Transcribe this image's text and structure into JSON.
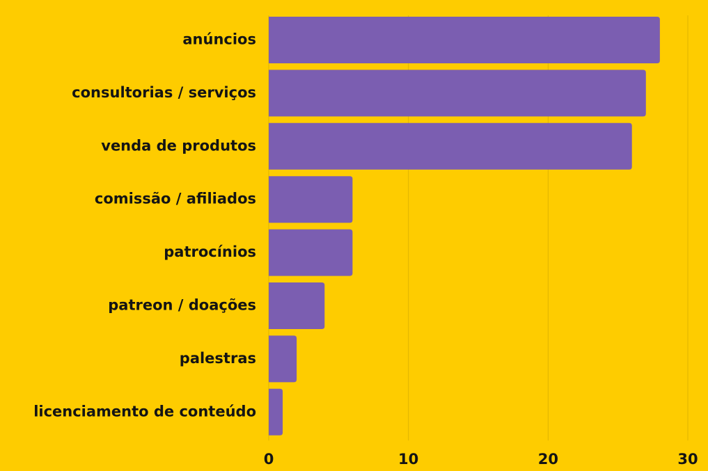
{
  "colors": {
    "background": "#FECC00",
    "bar": "#7B5EB1",
    "grid": "#E0B400",
    "text": "#141414"
  },
  "chart_data": {
    "type": "bar",
    "orientation": "horizontal",
    "categories": [
      "anúncios",
      "consultorias / serviços",
      "venda de produtos",
      "comissão / afiliados",
      "patrocínios",
      "patreon / doações",
      "palestras",
      "licenciamento de conteúdo"
    ],
    "values": [
      28,
      27,
      26,
      6,
      6,
      4,
      2,
      1
    ],
    "xlim": [
      0,
      30
    ],
    "xticks": [
      0,
      10,
      20,
      30
    ],
    "xtick_labels": [
      "0",
      "10",
      "20",
      "30"
    ],
    "title": "",
    "xlabel": "",
    "ylabel": "",
    "grid": "vertical",
    "legend": "none"
  }
}
